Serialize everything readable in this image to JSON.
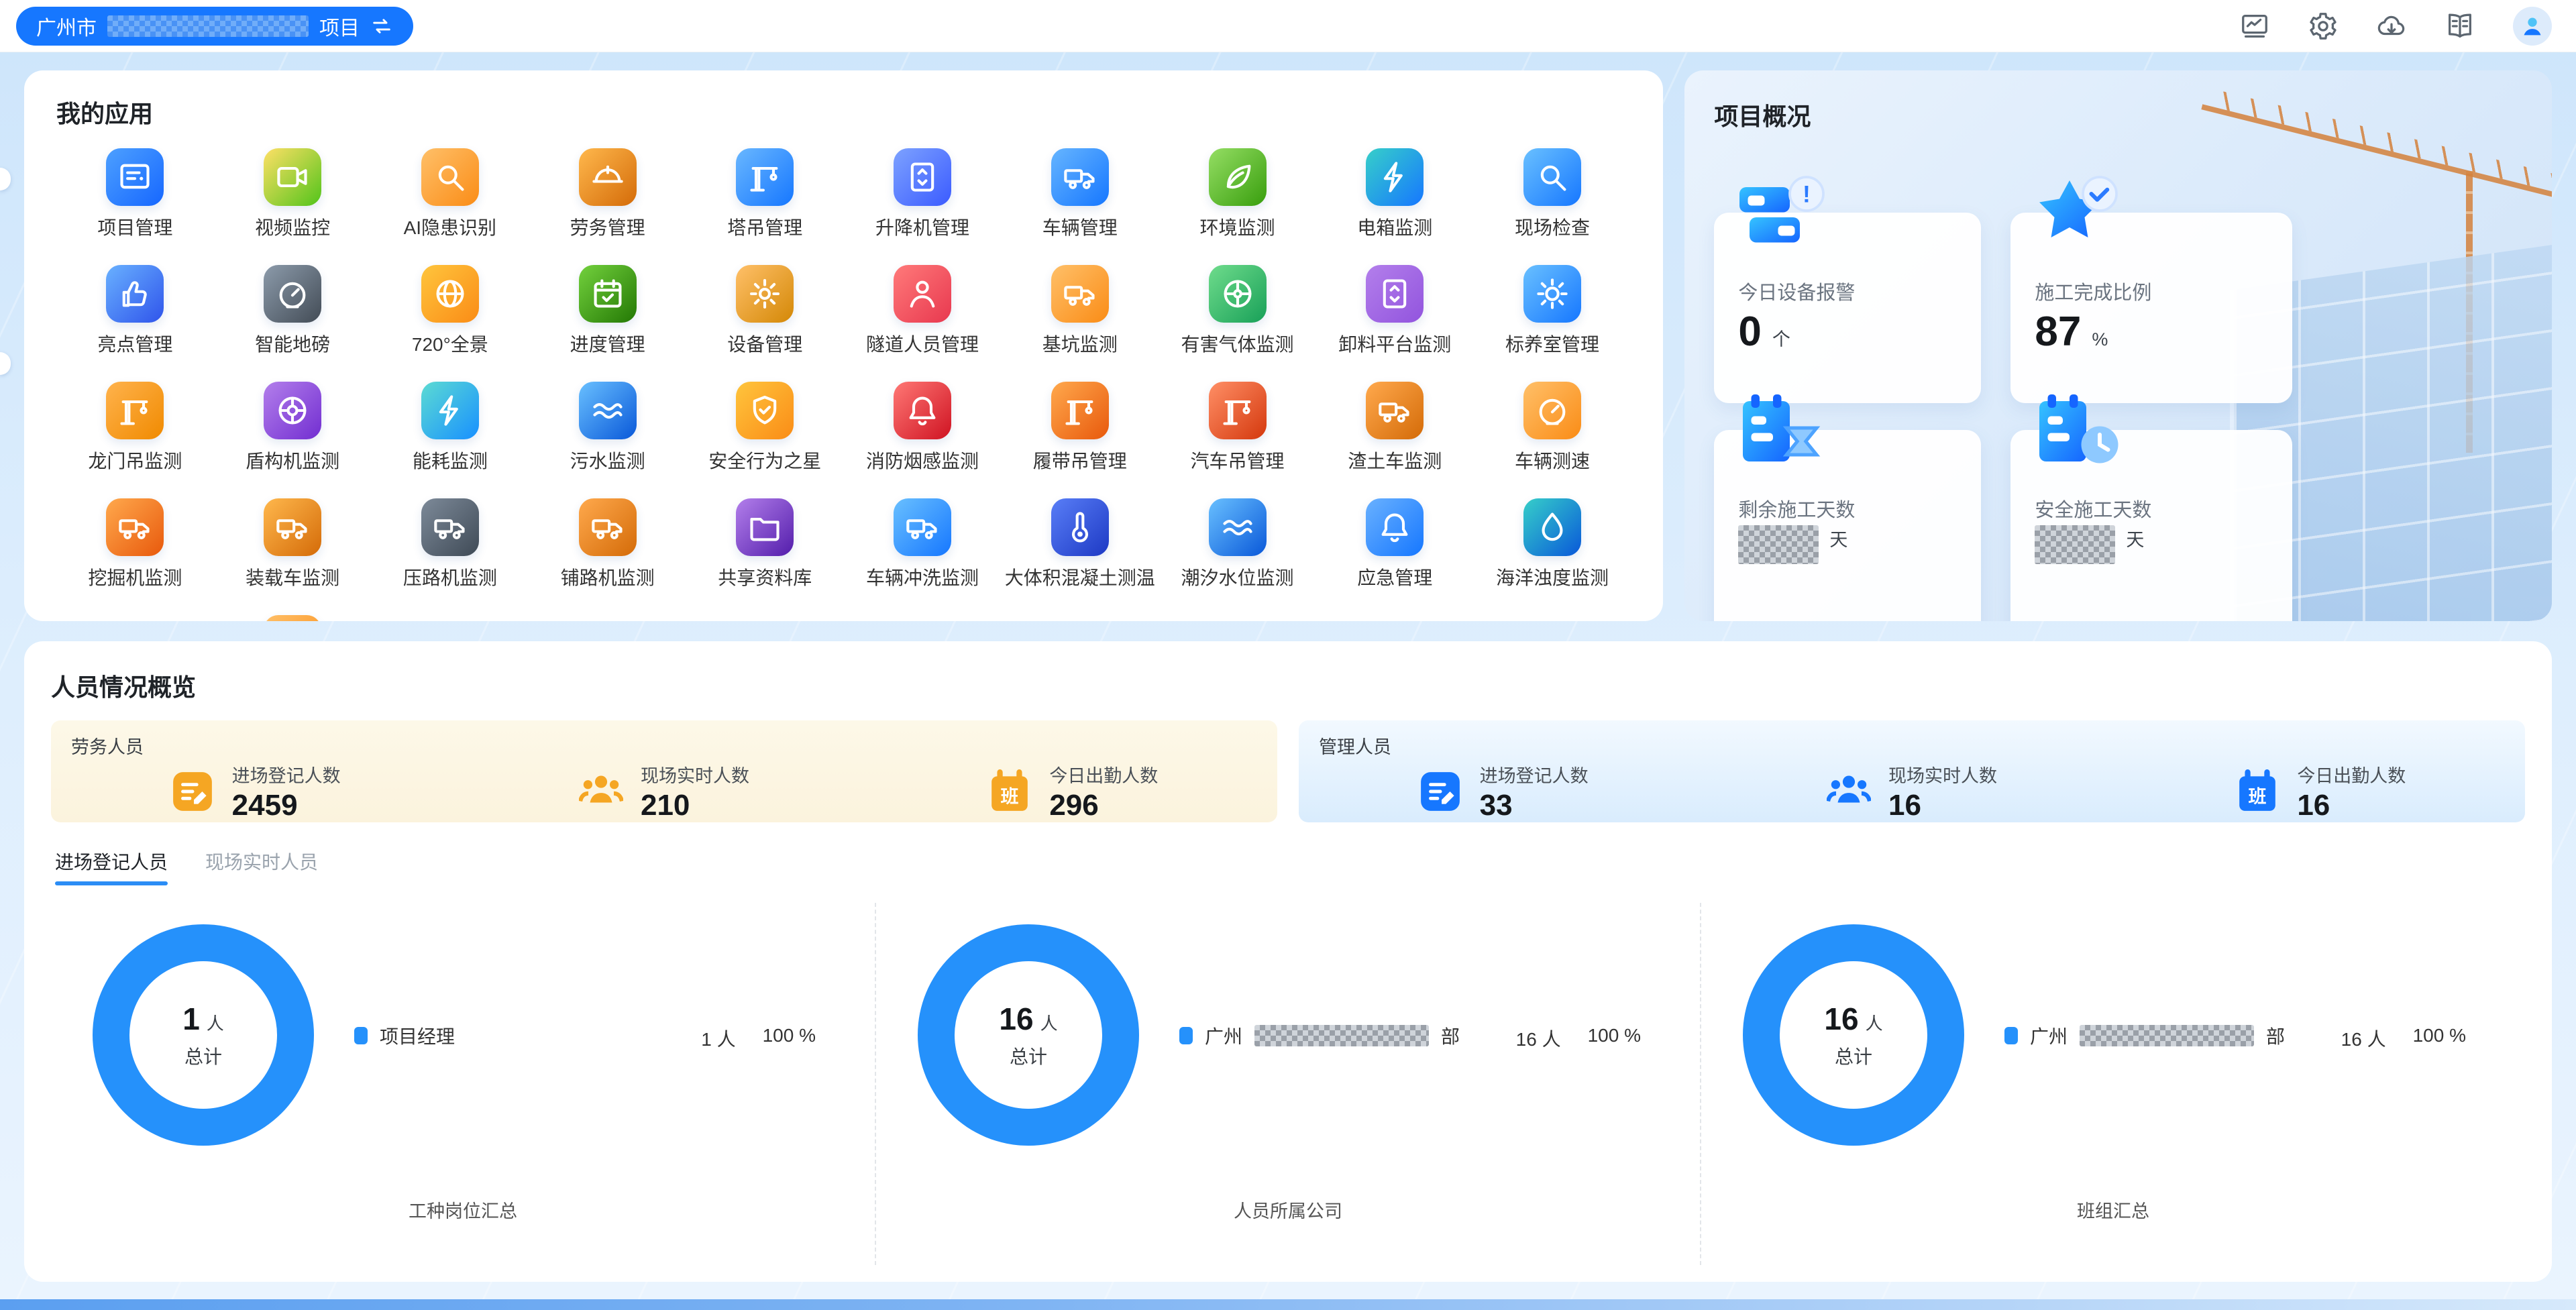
{
  "topbar": {
    "project_prefix": "广州市",
    "project_suffix": "项目",
    "icons": [
      {
        "name": "dashboard-monitor-icon"
      },
      {
        "name": "settings-gear-icon"
      },
      {
        "name": "cloud-download-icon"
      },
      {
        "name": "manual-book-icon"
      }
    ]
  },
  "colors": {
    "brand_blue": "#1677ff",
    "donut_blue": "#2591fb",
    "labor_accent": "#f5a623",
    "mgmt_accent": "#1677ff",
    "tab_active_underline": "#2b8df5"
  },
  "apps": {
    "title": "我的应用",
    "items": [
      {
        "label": "项目管理",
        "icon": "project-board-icon",
        "c1": "#4da0ff",
        "c2": "#1667ff"
      },
      {
        "label": "视频监控",
        "icon": "video-monitor-icon",
        "c1": "#ffe066",
        "c2": "#52c41a"
      },
      {
        "label": "AI隐患识别",
        "icon": "ai-hazard-search-icon",
        "c1": "#ffc069",
        "c2": "#fa8c16"
      },
      {
        "label": "劳务管理",
        "icon": "labor-helmet-icon",
        "c1": "#ffb84d",
        "c2": "#d46b08"
      },
      {
        "label": "塔吊管理",
        "icon": "tower-crane-icon",
        "c1": "#69b7ff",
        "c2": "#1677ff"
      },
      {
        "label": "升降机管理",
        "icon": "hoist-lift-icon",
        "c1": "#7da2ff",
        "c2": "#3b5bff"
      },
      {
        "label": "车辆管理",
        "icon": "vehicle-icon",
        "c1": "#66b5ff",
        "c2": "#1677ff"
      },
      {
        "label": "环境监测",
        "icon": "environment-leaf-icon",
        "c1": "#95de64",
        "c2": "#389e0d"
      },
      {
        "label": "电箱监测",
        "icon": "power-box-icon",
        "c1": "#36cfc9",
        "c2": "#1677ff"
      },
      {
        "label": "现场检查",
        "icon": "site-inspect-icon",
        "c1": "#69c0ff",
        "c2": "#1677ff"
      },
      {
        "label": "亮点管理",
        "icon": "highlight-thumb-icon",
        "c1": "#69b1ff",
        "c2": "#2f54eb"
      },
      {
        "label": "智能地磅",
        "icon": "smart-scale-icon",
        "c1": "#8c9bab",
        "c2": "#434c56"
      },
      {
        "label": "720°全景",
        "icon": "panorama-globe-icon",
        "c1": "#ffc53d",
        "c2": "#fa8c16"
      },
      {
        "label": "进度管理",
        "icon": "progress-calendar-icon",
        "c1": "#73d13d",
        "c2": "#237804"
      },
      {
        "label": "设备管理",
        "icon": "equipment-gear-icon",
        "c1": "#ffc069",
        "c2": "#d48806"
      },
      {
        "label": "隧道人员管理",
        "icon": "tunnel-person-icon",
        "c1": "#ff7a7a",
        "c2": "#e8384f"
      },
      {
        "label": "基坑监测",
        "icon": "pit-excavator-icon",
        "c1": "#ffc069",
        "c2": "#fa8c16"
      },
      {
        "label": "有害气体监测",
        "icon": "gas-fan-icon",
        "c1": "#6fdc8c",
        "c2": "#18a058"
      },
      {
        "label": "卸料平台监测",
        "icon": "unload-platform-icon",
        "c1": "#b37feb",
        "c2": "#9254de"
      },
      {
        "label": "标养室管理",
        "icon": "curing-room-sun-icon",
        "c1": "#69c0ff",
        "c2": "#1677ff"
      },
      {
        "label": "龙门吊监测",
        "icon": "gantry-crane-icon",
        "c1": "#ffb34d",
        "c2": "#f08a00"
      },
      {
        "label": "盾构机监测",
        "icon": "shield-machine-disc-icon",
        "c1": "#b37feb",
        "c2": "#722ed1"
      },
      {
        "label": "能耗监测",
        "icon": "energy-bolt-icon",
        "c1": "#5cdbd3",
        "c2": "#1890ff"
      },
      {
        "label": "污水监测",
        "icon": "sewage-wave-icon",
        "c1": "#69c0ff",
        "c2": "#0958d9"
      },
      {
        "label": "安全行为之星",
        "icon": "safety-shield-icon",
        "c1": "#ffc53d",
        "c2": "#fa8c16"
      },
      {
        "label": "消防烟感监测",
        "icon": "smoke-alarm-icon",
        "c1": "#ff7875",
        "c2": "#cf1322"
      },
      {
        "label": "履带吊管理",
        "icon": "crawler-crane-icon",
        "c1": "#ffa94d",
        "c2": "#e8590c"
      },
      {
        "label": "汽车吊管理",
        "icon": "truck-crane-icon",
        "c1": "#ff8f66",
        "c2": "#d4380d"
      },
      {
        "label": "渣土车监测",
        "icon": "dump-truck-icon",
        "c1": "#ffa94d",
        "c2": "#d46b08"
      },
      {
        "label": "车辆测速",
        "icon": "speed-gauge-icon",
        "c1": "#ffc069",
        "c2": "#fa8c16"
      },
      {
        "label": "挖掘机监测",
        "icon": "excavator-icon",
        "c1": "#ffa94d",
        "c2": "#e8590c"
      },
      {
        "label": "装载车监测",
        "icon": "loader-truck-icon",
        "c1": "#ffb84d",
        "c2": "#d46b08"
      },
      {
        "label": "压路机监测",
        "icon": "roller-icon",
        "c1": "#7d8a99",
        "c2": "#3f4a56"
      },
      {
        "label": "铺路机监测",
        "icon": "paver-icon",
        "c1": "#ffa94d",
        "c2": "#d46b08"
      },
      {
        "label": "共享资料库",
        "icon": "shared-folder-icon",
        "c1": "#b37feb",
        "c2": "#531dab"
      },
      {
        "label": "车辆冲洗监测",
        "icon": "vehicle-wash-icon",
        "c1": "#69c0ff",
        "c2": "#1677ff"
      },
      {
        "label": "大体积混凝土测温",
        "icon": "concrete-thermo-icon",
        "c1": "#597ef7",
        "c2": "#1d39c4"
      },
      {
        "label": "潮汐水位监测",
        "icon": "tide-wave-icon",
        "c1": "#69c0ff",
        "c2": "#0958d9"
      },
      {
        "label": "应急管理",
        "icon": "emergency-siren-icon",
        "c1": "#69b1ff",
        "c2": "#1677ff"
      },
      {
        "label": "海洋浊度监测",
        "icon": "ocean-drop-icon",
        "c1": "#36cfc9",
        "c2": "#0958d9"
      },
      {
        "label": "",
        "icon": "partial-app-icon",
        "c1": "#ffc069",
        "c2": "#fa8c16",
        "partial": true
      }
    ]
  },
  "overview": {
    "title": "项目概况",
    "cards": [
      {
        "label": "今日设备报警",
        "value": "0",
        "unit": "个",
        "icon": "device-alarm-icon",
        "censored": false
      },
      {
        "label": "施工完成比例",
        "value": "87",
        "unit": "%",
        "icon": "star-check-icon",
        "censored": false
      },
      {
        "label": "剩余施工天数",
        "value": "",
        "unit": "天",
        "icon": "calendar-hourglass-icon",
        "censored": true
      },
      {
        "label": "安全施工天数",
        "value": "",
        "unit": "天",
        "icon": "calendar-clock-icon",
        "censored": true
      }
    ]
  },
  "personnel": {
    "title": "人员情况概览",
    "labor": {
      "title": "劳务人员",
      "accent": "#f5a623",
      "stats": [
        {
          "label": "进场登记人数",
          "value": "2459",
          "icon": "register-form-icon"
        },
        {
          "label": "现场实时人数",
          "value": "210",
          "icon": "people-group-icon"
        },
        {
          "label": "今日出勤人数",
          "value": "296",
          "icon": "attendance-calendar-icon",
          "badge": "班"
        }
      ]
    },
    "management": {
      "title": "管理人员",
      "accent": "#1677ff",
      "stats": [
        {
          "label": "进场登记人数",
          "value": "33",
          "icon": "register-form-icon"
        },
        {
          "label": "现场实时人数",
          "value": "16",
          "icon": "people-group-icon"
        },
        {
          "label": "今日出勤人数",
          "value": "16",
          "icon": "attendance-calendar-icon",
          "badge": "班"
        }
      ]
    },
    "tabs": [
      {
        "label": "进场登记人员",
        "active": true
      },
      {
        "label": "现场实时人员",
        "active": false
      }
    ],
    "charts": [
      {
        "total": "1",
        "total_unit": "人",
        "total_label": "总计",
        "legend_prefix": "项目经理",
        "legend_censored": false,
        "legend_suffix": "",
        "count": "1",
        "count_unit": "人",
        "percent": "100",
        "percent_unit": "%",
        "footer": "工种岗位汇总",
        "ring_color": "#2591fb",
        "slice_percent": 100
      },
      {
        "total": "16",
        "total_unit": "人",
        "total_label": "总计",
        "legend_prefix": "广州",
        "legend_censored": true,
        "legend_suffix": "部",
        "count": "16",
        "count_unit": "人",
        "percent": "100",
        "percent_unit": "%",
        "footer": "人员所属公司",
        "ring_color": "#2591fb",
        "slice_percent": 100
      },
      {
        "total": "16",
        "total_unit": "人",
        "total_label": "总计",
        "legend_prefix": "广州",
        "legend_censored": true,
        "legend_suffix": "部",
        "count": "16",
        "count_unit": "人",
        "percent": "100",
        "percent_unit": "%",
        "footer": "班组汇总",
        "ring_color": "#2591fb",
        "slice_percent": 100
      }
    ]
  }
}
